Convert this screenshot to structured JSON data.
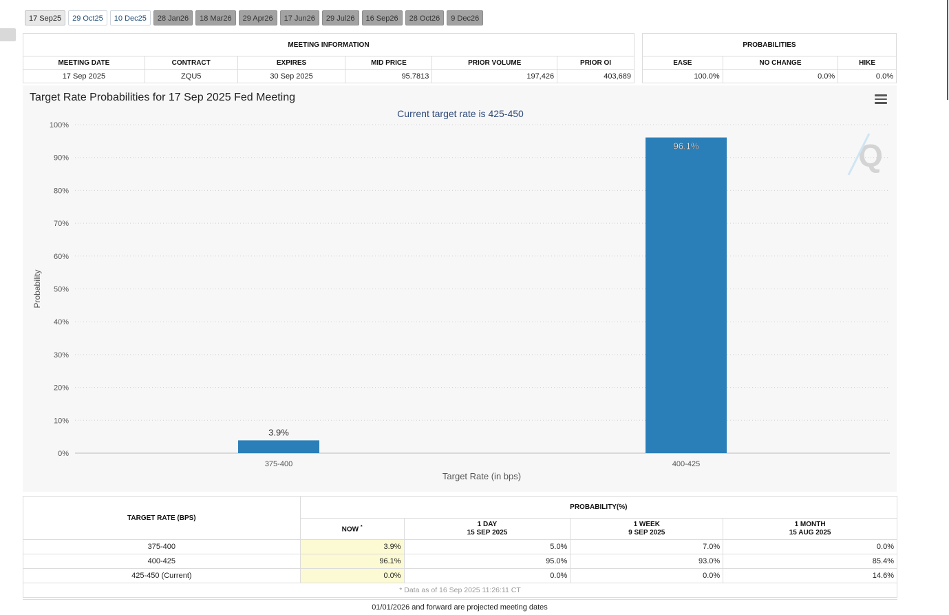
{
  "tabs": [
    {
      "label": "17 Sep25",
      "style": "active"
    },
    {
      "label": "29 Oct25",
      "style": "light"
    },
    {
      "label": "10 Dec25",
      "style": "light"
    },
    {
      "label": "28 Jan26",
      "style": "dark"
    },
    {
      "label": "18 Mar26",
      "style": "dark"
    },
    {
      "label": "29 Apr26",
      "style": "dark"
    },
    {
      "label": "17 Jun26",
      "style": "dark"
    },
    {
      "label": "29 Jul26",
      "style": "dark"
    },
    {
      "label": "16 Sep26",
      "style": "dark"
    },
    {
      "label": "28 Oct26",
      "style": "dark"
    },
    {
      "label": "9 Dec26",
      "style": "dark"
    }
  ],
  "meeting_info": {
    "title": "MEETING INFORMATION",
    "headers": [
      "MEETING DATE",
      "CONTRACT",
      "EXPIRES",
      "MID PRICE",
      "PRIOR VOLUME",
      "PRIOR OI"
    ],
    "row": [
      "17 Sep 2025",
      "ZQU5",
      "30 Sep 2025",
      "95.7813",
      "197,426",
      "403,689"
    ]
  },
  "probabilities": {
    "title": "PROBABILITIES",
    "headers": [
      "EASE",
      "NO CHANGE",
      "HIKE"
    ],
    "row": [
      "100.0%",
      "0.0%",
      "0.0%"
    ]
  },
  "chart_data": {
    "type": "bar",
    "title": "Target Rate Probabilities for 17 Sep 2025 Fed Meeting",
    "subtitle": "Current target rate is 425-450",
    "xlabel": "Target Rate (in bps)",
    "ylabel": "Probability",
    "categories": [
      "375-400",
      "400-425"
    ],
    "values": [
      3.9,
      96.1
    ],
    "data_labels": [
      "3.9%",
      "96.1%"
    ],
    "ylim": [
      0,
      100
    ],
    "yticks": [
      "0%",
      "10%",
      "20%",
      "30%",
      "40%",
      "50%",
      "60%",
      "70%",
      "80%",
      "90%",
      "100%"
    ],
    "grid": true,
    "bar_color": "#2b7fb8",
    "watermark": "Q"
  },
  "bottom_table": {
    "col_header": "TARGET RATE (BPS)",
    "prob_header": "PROBABILITY(%)",
    "now_label": "NOW",
    "now_mark": "*",
    "periods": [
      {
        "label": "1 DAY",
        "date": "15 SEP 2025"
      },
      {
        "label": "1 WEEK",
        "date": "9 SEP 2025"
      },
      {
        "label": "1 MONTH",
        "date": "15 AUG 2025"
      }
    ],
    "rows": [
      {
        "rate": "375-400",
        "now": "3.9%",
        "d1": "5.0%",
        "w1": "7.0%",
        "m1": "0.0%"
      },
      {
        "rate": "400-425",
        "now": "96.1%",
        "d1": "95.0%",
        "w1": "93.0%",
        "m1": "85.4%"
      },
      {
        "rate": "425-450 (Current)",
        "now": "0.0%",
        "d1": "0.0%",
        "w1": "0.0%",
        "m1": "14.6%"
      }
    ],
    "note": "* Data as of 16 Sep 2025 11:26:11 CT"
  },
  "footer": "01/01/2026 and forward are projected meeting dates"
}
